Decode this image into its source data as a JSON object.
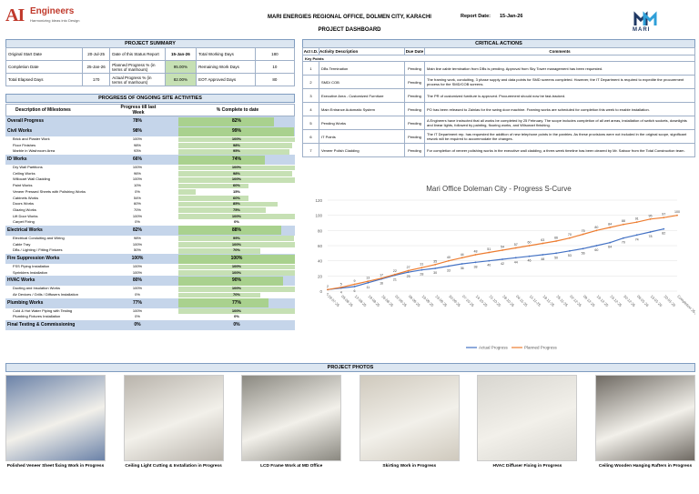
{
  "header": {
    "logo_main": "AI",
    "logo_text": "Engineers",
    "logo_sub": "Harmonizing Ideas into Design",
    "title": "MARI ENERGIES REGIONAL OFFICE, DOLMEN CITY, KARACHI",
    "subtitle": "PROJECT DASHBOARD",
    "report_date_label": "Report Date:",
    "report_date": "15-Jan-26",
    "client_logo": "MARI"
  },
  "summary": {
    "title": "PROJECT SUMMARY",
    "rows": [
      [
        "Original Start Date",
        "20-Jul-25",
        "Date of this Status Report",
        "15-Jan-26",
        "Total Working Days",
        "180"
      ],
      [
        "Completion Date",
        "25-Jan-26",
        "Planned Progress % (in terms of manhours)",
        "95.00%",
        "Remaining Work Days",
        "10"
      ],
      [
        "Total Elapsed Days",
        "170",
        "Actual Progress % (in terms of manhours)",
        "82.00%",
        "EOT Approved Days",
        "80"
      ]
    ]
  },
  "progress": {
    "title": "PROGRESS OF ONGOING SITE ACTIVITIES",
    "col_desc": "Description of Milestones",
    "col_week": "Progress till last Week",
    "col_pct": "% Complete to date",
    "rows": [
      {
        "type": "cat",
        "label": "Overall Progress",
        "week": "78%",
        "pct": "82%",
        "level": 0.82
      },
      {
        "type": "cat",
        "label": "Civil Works",
        "week": "98%",
        "pct": "99%",
        "level": 0.99
      },
      {
        "type": "item",
        "label": "Brick and Plaster Work",
        "week": "100%",
        "pct": "100%",
        "level": 1.0
      },
      {
        "type": "item",
        "label": "Floor Finishes",
        "week": "98%",
        "pct": "98%",
        "level": 0.98
      },
      {
        "type": "item",
        "label": "Marble in Washroom Area",
        "week": "93%",
        "pct": "95%",
        "level": 0.95
      },
      {
        "type": "cat",
        "label": "ID Works",
        "week": "66%",
        "pct": "74%",
        "level": 0.74
      },
      {
        "type": "item",
        "label": "Dry Wall Partitions",
        "week": "100%",
        "pct": "100%",
        "level": 1.0
      },
      {
        "type": "item",
        "label": "Ceiling Works",
        "week": "96%",
        "pct": "98%",
        "level": 0.98
      },
      {
        "type": "item",
        "label": "Willocart Wall Cladding",
        "week": "100%",
        "pct": "100%",
        "level": 1.0
      },
      {
        "type": "item",
        "label": "Paint Works",
        "week": "10%",
        "pct": "60%",
        "level": 0.6
      },
      {
        "type": "item",
        "label": "Veneer Pressed Sheets with Polishing Works",
        "week": "0%",
        "pct": "15%",
        "level": 0.15
      },
      {
        "type": "item",
        "label": "Cabinets Works",
        "week": "54%",
        "pct": "60%",
        "level": 0.6
      },
      {
        "type": "item",
        "label": "Doors Works",
        "week": "60%",
        "pct": "85%",
        "level": 0.85
      },
      {
        "type": "item",
        "label": "Glazing Works",
        "week": "70%",
        "pct": "75%",
        "level": 0.75
      },
      {
        "type": "item",
        "label": "Lift Door Works",
        "week": "100%",
        "pct": "100%",
        "level": 1.0
      },
      {
        "type": "item",
        "label": "Carpet Fixing",
        "week": "0%",
        "pct": "0%",
        "level": 0.0
      },
      {
        "type": "cat",
        "label": "Electrical Works",
        "week": "82%",
        "pct": "88%",
        "level": 0.88
      },
      {
        "type": "item",
        "label": "Electrical Conduiting and Wiring",
        "week": "98%",
        "pct": "99%",
        "level": 0.99
      },
      {
        "type": "item",
        "label": "Cable Tray",
        "week": "100%",
        "pct": "100%",
        "level": 1.0
      },
      {
        "type": "item",
        "label": "DBs / Lighting / Fitting Fixtures",
        "week": "50%",
        "pct": "70%",
        "level": 0.7
      },
      {
        "type": "cat",
        "label": "Fire Suppression Works",
        "week": "100%",
        "pct": "100%",
        "level": 1.0
      },
      {
        "type": "item",
        "label": "FSS Piping Installation",
        "week": "100%",
        "pct": "100%",
        "level": 1.0
      },
      {
        "type": "item",
        "label": "Sprinklers Installation",
        "week": "100%",
        "pct": "100%",
        "level": 1.0
      },
      {
        "type": "cat",
        "label": "HVAC Works",
        "week": "80%",
        "pct": "90%",
        "level": 0.9
      },
      {
        "type": "item",
        "label": "Ducting and Insulation Works",
        "week": "100%",
        "pct": "100%",
        "level": 1.0
      },
      {
        "type": "item",
        "label": "Air Devices / Grills / Diffusers Installation",
        "week": "0%",
        "pct": "70%",
        "level": 0.7
      },
      {
        "type": "cat",
        "label": "Plumbing Works",
        "week": "77%",
        "pct": "77%",
        "level": 0.77
      },
      {
        "type": "item",
        "label": "Cold & Hot Water Piping with Testing",
        "week": "100%",
        "pct": "100%",
        "level": 1.0
      },
      {
        "type": "item",
        "label": "Plumbing Fixtures Installation",
        "week": "0%",
        "pct": "0%",
        "level": 0.0
      },
      {
        "type": "cat",
        "label": "Final Testing & Commissioning",
        "week": "0%",
        "pct": "0%",
        "level": 0.0
      }
    ]
  },
  "critical": {
    "title": "CRITICAL ACTIONS",
    "col_id": "Act I.D.",
    "col_desc": "Activity Description",
    "col_due": "Due Date",
    "col_comments": "Comments",
    "key_points": "Key Points",
    "rows": [
      {
        "id": "1",
        "desc": "DBs Termination",
        "due": "Pending",
        "comment": "Main line cable termination from DBs is pending. Approval from Sky Tower management has been requested."
      },
      {
        "id": "2",
        "desc": "SMD/ COB",
        "due": "Pending",
        "comment": "The framing work, conduiting, 3 phase supply and data points for SMD screens completed. However, the IT Department is required to expedite the procurement process for the SMD/COB screens."
      },
      {
        "id": "3",
        "desc": "Executive Area - Customized Furniture",
        "due": "Pending",
        "comment": "The PR of customized furniture is approved. Procurement should now be fast-tracked."
      },
      {
        "id": "4",
        "desc": "Main Entrance Automatic System",
        "due": "Pending",
        "comment": "PO has been released to Zainlas for the swing door machine. Framing works are scheduled for completion this week to enable installation."
      },
      {
        "id": "5",
        "desc": "Pending Works",
        "due": "Pending",
        "comment": "A Engineers have instructed that all works be completed by 25 February. The scope includes completion of all wet areas, installation of switch sockets, downlights and linear lights, followed by painting, flooring works, and Wilsonart finishing."
      },
      {
        "id": "6",
        "desc": "IT Points",
        "due": "Pending",
        "comment": "The IT Department rep. has requested the addition of new telephone points in the pantries. As these provisions were not included in the original scope, significant rework will be required to accommodate the changes."
      },
      {
        "id": "7",
        "desc": "Veneer Polish Cladding",
        "due": "Pending",
        "comment": "For completion of veneer polishing works in the executive wall cladding, a three-week timeline has been cleared by Mr. Saboor from the Total Construction team."
      }
    ]
  },
  "chart_data": {
    "type": "line",
    "title": "Mari Office Doleman City - Progress S-Curve",
    "x": [
      "29-07-25",
      "05-08-25",
      "12-08-25",
      "19-08-25",
      "26-08-25",
      "02-09-25",
      "09-09-25",
      "16-09-25",
      "23-09-25",
      "30-09-25",
      "07-10-25",
      "14-10-25",
      "21-10-25",
      "28-10-25",
      "04-11-25",
      "11-11-25",
      "18-11-25",
      "25-11-25",
      "02-12-25",
      "09-12-25",
      "16-12-25",
      "23-12-25",
      "30-12-25",
      "06-01-26",
      "13-01-26",
      "20-01-26",
      "Completion 25-01-2026"
    ],
    "ylim": [
      0,
      120
    ],
    "yticks": [
      0,
      20,
      40,
      60,
      80,
      100,
      120
    ],
    "series": [
      {
        "name": "Actual Progress",
        "color": "#4472c4",
        "values": [
          2,
          4,
          6,
          11,
          16,
          21,
          25,
          28,
          30,
          33,
          36,
          38,
          40,
          42,
          44,
          46,
          48,
          50,
          53,
          56,
          60,
          64,
          70,
          74,
          78,
          82,
          null
        ]
      },
      {
        "name": "Planned Progress",
        "color": "#ed7d31",
        "values": [
          2,
          5,
          9,
          13,
          17,
          22,
          27,
          31,
          35,
          40,
          44,
          48,
          51,
          54,
          57,
          60,
          63,
          66,
          70,
          75,
          80,
          84,
          88,
          91,
          95,
          97,
          100
        ]
      }
    ],
    "point_labels": {
      "actual": [
        "2",
        "4",
        "6",
        "11",
        "16",
        "21",
        "25",
        "28",
        "30",
        "33",
        "36",
        "38",
        "40",
        "42",
        "44",
        "46",
        "48",
        "50",
        "53",
        "56",
        "60",
        "64",
        "70",
        "74",
        "78",
        "82"
      ],
      "planned": [
        "2",
        "5",
        "9",
        "13",
        "17",
        "22",
        "27",
        "31",
        "35",
        "40",
        "44",
        "48",
        "51",
        "54",
        "57",
        "60",
        "63",
        "66",
        "70",
        "75",
        "80",
        "84",
        "88",
        "91",
        "95",
        "97",
        "100"
      ]
    },
    "legend": "bottom",
    "grid": true
  },
  "photos": {
    "title": "PROJECT PHOTOS",
    "items": [
      {
        "caption": "Polished Veneer Sheet fixing Work in Progress",
        "tone": "#6b82a8"
      },
      {
        "caption": "Ceiling Light Cutting & Installation in Progress",
        "tone": "#b9b4ac"
      },
      {
        "caption": "LCD Frame Work at MD Office",
        "tone": "#8a8880"
      },
      {
        "caption": "Skirting Work in Progress",
        "tone": "#cfc9bd"
      },
      {
        "caption": "HVAC Diffuser Fixing in Progress",
        "tone": "#d8d6d0"
      },
      {
        "caption": "Ceiling Wooden Hanging Rafters in Progress",
        "tone": "#6f6a63"
      }
    ]
  }
}
